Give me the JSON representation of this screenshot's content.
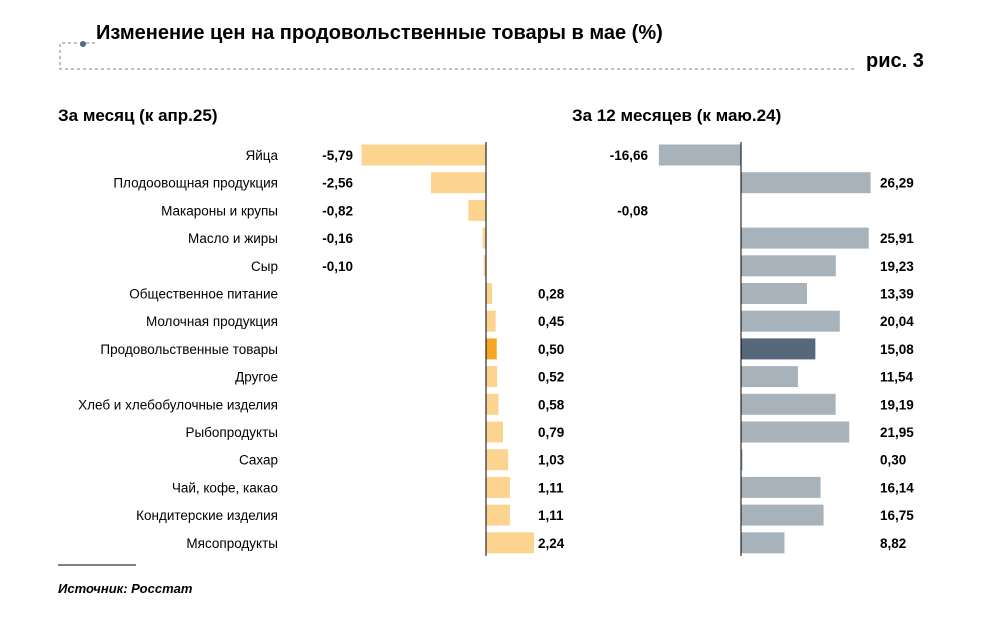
{
  "title": "Изменение цен на продовольственные товары в мае (%)",
  "figure_label": "рис. 3",
  "source": "Источник: Росстат",
  "colors": {
    "left_bar": "#FCD490",
    "left_highlight": "#F6A623",
    "right_bar": "#A8B2BB",
    "right_highlight": "#56687A"
  },
  "chart_data": [
    {
      "type": "bar",
      "orientation": "horizontal",
      "title": "За месяц (к апр.25)",
      "categories": [
        "Яйца",
        "Плодоовощная продукция",
        "Макароны и крупы",
        "Масло и жиры",
        "Сыр",
        "Общественное питание",
        "Молочная продукция",
        "Продовольственные товары",
        "Другое",
        "Хлеб и хлебобулочные изделия",
        "Рыбопродукты",
        "Сахар",
        "Чай, кофе, какао",
        "Кондитерские изделия",
        "Мясопродукты"
      ],
      "values": [
        -5.79,
        -2.56,
        -0.82,
        -0.16,
        -0.1,
        0.28,
        0.45,
        0.5,
        0.52,
        0.58,
        0.79,
        1.03,
        1.11,
        1.11,
        2.24
      ],
      "labels": [
        "-5,79",
        "-2,56",
        "-0,82",
        "-0,16",
        "-0,10",
        "0,28",
        "0,45",
        "0,50",
        "0,52",
        "0,58",
        "0,79",
        "1,03",
        "1,11",
        "1,11",
        "2,24"
      ],
      "highlight": "Продовольственные товары",
      "grid": false
    },
    {
      "type": "bar",
      "orientation": "horizontal",
      "title": "За 12 месяцев (к маю.24)",
      "categories": [
        "Яйца",
        "Плодоовощная продукция",
        "Макароны и крупы",
        "Масло и жиры",
        "Сыр",
        "Общественное питание",
        "Молочная продукция",
        "Продовольственные товары",
        "Другое",
        "Хлеб и хлебобулочные изделия",
        "Рыбопродукты",
        "Сахар",
        "Чай, кофе, какао",
        "Кондитерские изделия",
        "Мясопродукты"
      ],
      "values": [
        -16.66,
        26.29,
        -0.08,
        25.91,
        19.23,
        13.39,
        20.04,
        15.08,
        11.54,
        19.19,
        21.95,
        0.3,
        16.14,
        16.75,
        8.82
      ],
      "labels": [
        "-16,66",
        "26,29",
        "-0,08",
        "25,91",
        "19,23",
        "13,39",
        "20,04",
        "15,08",
        "11,54",
        "19,19",
        "21,95",
        "0,30",
        "16,14",
        "16,75",
        "8,82"
      ],
      "highlight": "Продовольственные товары",
      "grid": false
    }
  ]
}
